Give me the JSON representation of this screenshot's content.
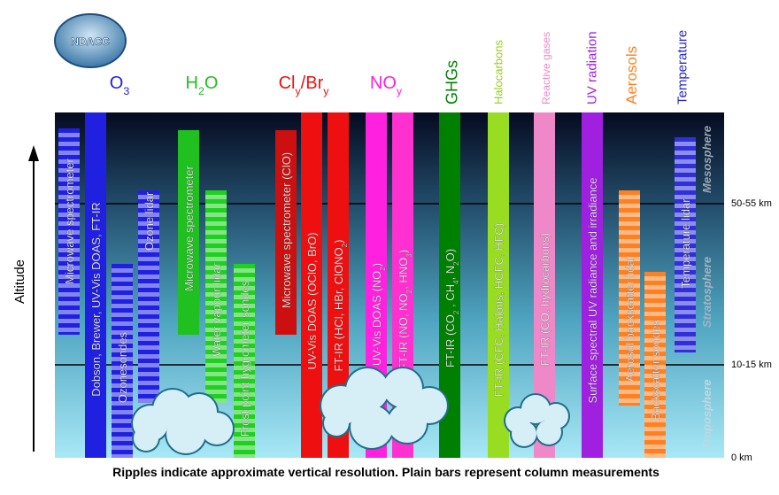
{
  "logo": "NDACC",
  "headers": [
    {
      "label": [
        "O",
        {
          "sub": "3"
        }
      ],
      "color": "#2020e0"
    },
    {
      "label": [
        "H",
        {
          "sub": "2"
        },
        "O"
      ],
      "color": "#20c020"
    },
    {
      "label": [
        "Cl",
        {
          "sub": "y"
        },
        "/Br",
        {
          "sub": "y"
        }
      ],
      "color": "#ee1010"
    },
    {
      "label": [
        "NO",
        {
          "sub": "y"
        }
      ],
      "color": "#ff20e0"
    },
    {
      "label": [
        "GHGs"
      ],
      "color": "#008000"
    },
    {
      "label": [
        "Halocarbons"
      ],
      "color": "#99cc22"
    },
    {
      "label": [
        "Reactive gases"
      ],
      "color": "#ee88c8"
    },
    {
      "label": [
        "UV radiation"
      ],
      "color": "#a020e0"
    },
    {
      "label": [
        "Aerosols"
      ],
      "color": "#ff8020"
    },
    {
      "label": [
        "Temperature"
      ],
      "color": "#2828c8"
    }
  ],
  "instruments": [
    {
      "label": [
        "Microwave spectrometer"
      ],
      "color": "#2020e0",
      "ripples": true
    },
    {
      "label": [
        "Dobson, Brewer, UV-Vis DOAS, FT-IR"
      ],
      "color": "#2020e0",
      "ripples": false
    },
    {
      "label": [
        "Ozonesondes"
      ],
      "color": "#2020e0",
      "ripples": true
    },
    {
      "label": [
        "Ozone lidar"
      ],
      "color": "#2020e0",
      "ripples": true
    },
    {
      "label": [
        "Microwave spectrometer"
      ],
      "color": "#20c020",
      "ripples": false
    },
    {
      "label": [
        "Water vapour lidar"
      ],
      "color": "#20d020",
      "ripples": true
    },
    {
      "label": [
        "Frost point hygrometer sondes"
      ],
      "color": "#20d020",
      "ripples": true
    },
    {
      "label": [
        "Microwave spectrometer (ClO)"
      ],
      "color": "#cc1010",
      "ripples": false
    },
    {
      "label": [
        "UV-Vis DOAS (OClO, BrO)"
      ],
      "color": "#ee1010",
      "ripples": false
    },
    {
      "label": [
        "FT-IR (HCl, HBr, ClONO",
        {
          "sub": "2"
        },
        ")"
      ],
      "color": "#ee1010",
      "ripples": false
    },
    {
      "label": [
        "UV-Vis DOAS (NO",
        {
          "sub": "2"
        },
        ")"
      ],
      "color": "#ff20e0",
      "ripples": false
    },
    {
      "label": [
        "FT-IR (NO, NO",
        {
          "sub": "2"
        },
        ", HNO",
        {
          "sub": "3"
        },
        ")"
      ],
      "color": "#ff30d0",
      "ripples": false
    },
    {
      "label": [
        "FT-IR (CO",
        {
          "sub": "2"
        },
        " , CH",
        {
          "sub": "4"
        },
        ", N",
        {
          "sub": "2"
        },
        "O)"
      ],
      "color": "#008000",
      "ripples": false
    },
    {
      "label": [
        "FT-IR (CFC, Halons, HCFC, HFC)"
      ],
      "color": "#99dd22",
      "ripples": false
    },
    {
      "label": [
        "FT-IR (CO, hydrocarbons)"
      ],
      "color": "#ee88c8",
      "ripples": false
    },
    {
      "label": [
        "Surface spectral UV radiance and irradiance"
      ],
      "color": "#a020e0",
      "ripples": false
    },
    {
      "label": [
        "Aerosol backscatter lidar"
      ],
      "color": "#ff8020",
      "ripples": true
    },
    {
      "label": [
        "Backscatter sondes"
      ],
      "color": "#ff8020",
      "ripples": true
    },
    {
      "label": [
        "Temperature lidar"
      ],
      "color": "#3030d8",
      "ripples": true
    }
  ],
  "layers": [
    "Mesosphere",
    "Stratosphere",
    "Troposphere"
  ],
  "altitudes": [
    "50-55 km",
    "10-15 km",
    "0 km"
  ],
  "axis_label": "Altitude",
  "footer": "Ripples indicate approximate vertical resolution. Plain bars represent column measurements"
}
